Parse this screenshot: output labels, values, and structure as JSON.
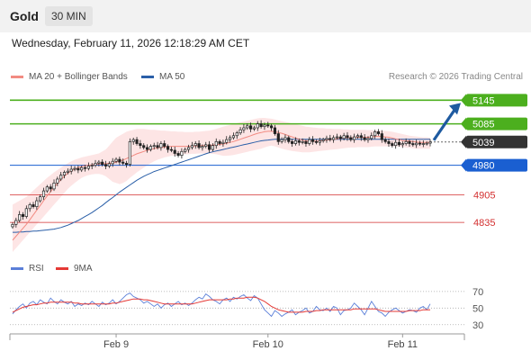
{
  "header": {
    "instrument": "Gold",
    "timeframe": "30 MIN"
  },
  "datetime": "Wednesday, February 11, 2026 12:18:29 AM CET",
  "legend": {
    "bollinger": "MA 20 + Bollinger Bands",
    "ma50": "MA 50",
    "rsi": "RSI",
    "rsi_ma": "9MA"
  },
  "credit": "Research © 2026 Trading Central",
  "colors": {
    "resistance": "#4caf1e",
    "current": "#333333",
    "pivot": "#1a5fd1",
    "support": "#d32f2f",
    "ma20": "#f28b82",
    "band": "#fde2e2",
    "ma50": "#2a5fa8",
    "rsi": "#5b7fd8",
    "rsi_ma": "#e53935",
    "arrow": "#1e5aa0"
  },
  "chart_data": [
    {
      "type": "candlestick",
      "instrument": "Gold",
      "x_labels": [
        "Feb 9",
        "Feb 10",
        "Feb 11"
      ],
      "ylim": [
        4760,
        5180
      ],
      "levels": [
        {
          "value": 5145,
          "label": "5145",
          "kind": "resistance"
        },
        {
          "value": 5085,
          "label": "5085",
          "kind": "resistance"
        },
        {
          "value": 5039,
          "label": "5039",
          "kind": "current"
        },
        {
          "value": 4980,
          "label": "4980",
          "kind": "pivot"
        },
        {
          "value": 4905,
          "label": "4905",
          "kind": "support"
        },
        {
          "value": 4835,
          "label": "4835",
          "kind": "support"
        }
      ],
      "close": [
        4830,
        4840,
        4855,
        4850,
        4870,
        4880,
        4875,
        4890,
        4900,
        4915,
        4925,
        4920,
        4935,
        4945,
        4955,
        4962,
        4965,
        4970,
        4972,
        4968,
        4974,
        4972,
        4978,
        4980,
        4985,
        4988,
        4982,
        4978,
        4984,
        4990,
        4995,
        4988,
        4985,
        4982,
        5040,
        5045,
        5035,
        5030,
        5025,
        5020,
        5028,
        5030,
        5025,
        5035,
        5028,
        5020,
        5018,
        5010,
        5005,
        5015,
        5020,
        5025,
        5030,
        5035,
        5025,
        5028,
        5032,
        5020,
        5030,
        5040,
        5035,
        5038,
        5045,
        5050,
        5055,
        5062,
        5070,
        5075,
        5080,
        5072,
        5075,
        5085,
        5078,
        5082,
        5080,
        5075,
        5060,
        5040,
        5045,
        5050,
        5040,
        5035,
        5042,
        5038,
        5040,
        5035,
        5045,
        5040,
        5038,
        5042,
        5045,
        5048,
        5045,
        5050,
        5052,
        5048,
        5055,
        5050,
        5045,
        5052,
        5055,
        5050,
        5045,
        5048,
        5055,
        5065,
        5060,
        5045,
        5040,
        5035,
        5030,
        5038,
        5032,
        5035,
        5040,
        5035,
        5032,
        5036,
        5034,
        5035,
        5036,
        5039
      ],
      "ma20": [
        4790,
        4800,
        4810,
        4820,
        4830,
        4842,
        4854,
        4866,
        4878,
        4890,
        4902,
        4913,
        4924,
        4934,
        4944,
        4952,
        4960,
        4966,
        4970,
        4974,
        4977,
        4979,
        4980,
        4981,
        4982,
        4983,
        4984,
        4984,
        4985,
        4986,
        4988,
        4990,
        4993,
        4997,
        5001,
        5005,
        5009,
        5012,
        5015,
        5018,
        5020,
        5022,
        5024,
        5025,
        5026,
        5027,
        5028,
        5028,
        5028,
        5028,
        5028,
        5028,
        5029,
        5029,
        5030,
        5030,
        5030,
        5031,
        5031,
        5032,
        5033,
        5034,
        5036,
        5038,
        5040,
        5043,
        5046,
        5049,
        5052,
        5055,
        5058,
        5061,
        5063,
        5065,
        5066,
        5066,
        5065,
        5063,
        5061,
        5058,
        5055,
        5052,
        5049,
        5046,
        5044,
        5042,
        5041,
        5041,
        5041,
        5042,
        5043,
        5044,
        5045,
        5046,
        5047,
        5048,
        5049,
        5050,
        5050,
        5050,
        5051,
        5051,
        5051,
        5051,
        5052,
        5053,
        5053,
        5053,
        5052,
        5051,
        5049,
        5047,
        5045,
        5043,
        5042,
        5041,
        5040,
        5039,
        5038,
        5038,
        5038,
        5038
      ],
      "bb_upper": [
        4880,
        4885,
        4890,
        4895,
        4900,
        4908,
        4916,
        4924,
        4932,
        4940,
        4948,
        4955,
        4962,
        4968,
        4974,
        4980,
        4985,
        4990,
        4994,
        4997,
        5000,
        5002,
        5004,
        5006,
        5008,
        5010,
        5015,
        5020,
        5030,
        5040,
        5050,
        5055,
        5060,
        5065,
        5068,
        5070,
        5072,
        5072,
        5072,
        5071,
        5070,
        5070,
        5069,
        5068,
        5068,
        5067,
        5066,
        5066,
        5065,
        5065,
        5064,
        5064,
        5064,
        5065,
        5065,
        5066,
        5067,
        5068,
        5070,
        5072,
        5075,
        5078,
        5080,
        5082,
        5085,
        5087,
        5089,
        5091,
        5093,
        5095,
        5097,
        5099,
        5100,
        5100,
        5099,
        5098,
        5096,
        5094,
        5092,
        5090,
        5088,
        5086,
        5084,
        5082,
        5080,
        5078,
        5077,
        5076,
        5075,
        5074,
        5074,
        5073,
        5073,
        5072,
        5072,
        5072,
        5071,
        5071,
        5070,
        5070,
        5070,
        5070,
        5070,
        5069,
        5069,
        5069,
        5068,
        5068,
        5067,
        5066,
        5065,
        5063,
        5061,
        5059,
        5057,
        5055,
        5054,
        5053,
        5052,
        5051,
        5051,
        5050
      ],
      "bb_lower": [
        4760,
        4770,
        4780,
        4790,
        4800,
        4810,
        4820,
        4830,
        4840,
        4850,
        4860,
        4870,
        4880,
        4890,
        4900,
        4910,
        4920,
        4928,
        4935,
        4942,
        4948,
        4952,
        4955,
        4957,
        4958,
        4958,
        4956,
        4952,
        4945,
        4938,
        4935,
        4932,
        4935,
        4940,
        4948,
        4955,
        4962,
        4968,
        4974,
        4980,
        4985,
        4990,
        4994,
        4997,
        5000,
        5002,
        5004,
        5005,
        5006,
        5007,
        5008,
        5008,
        5009,
        5009,
        5010,
        5010,
        5010,
        5010,
        5009,
        5008,
        5006,
        5004,
        5004,
        5005,
        5006,
        5008,
        5010,
        5012,
        5014,
        5016,
        5018,
        5020,
        5022,
        5025,
        5028,
        5030,
        5028,
        5025,
        5022,
        5020,
        5018,
        5016,
        5015,
        5014,
        5013,
        5013,
        5013,
        5014,
        5015,
        5016,
        5017,
        5018,
        5019,
        5020,
        5021,
        5022,
        5023,
        5024,
        5025,
        5025,
        5026,
        5026,
        5026,
        5026,
        5027,
        5028,
        5028,
        5028,
        5028,
        5028,
        5028,
        5028,
        5027,
        5026,
        5025,
        5024,
        5023,
        5022,
        5022,
        5022,
        5022,
        5022
      ],
      "ma50": [
        4810,
        4810,
        4811,
        4811,
        4812,
        4812,
        4813,
        4813,
        4814,
        4815,
        4816,
        4817,
        4818,
        4820,
        4822,
        4825,
        4828,
        4832,
        4836,
        4840,
        4845,
        4850,
        4855,
        4860,
        4866,
        4872,
        4878,
        4885,
        4892,
        4898,
        4905,
        4912,
        4918,
        4924,
        4930,
        4936,
        4942,
        4947,
        4952,
        4956,
        4960,
        4964,
        4967,
        4970,
        4973,
        4976,
        4979,
        4982,
        4985,
        4988,
        4991,
        4994,
        4997,
        5000,
        5003,
        5006,
        5009,
        5012,
        5014,
        5016,
        5018,
        5020,
        5022,
        5024,
        5026,
        5028,
        5030,
        5032,
        5034,
        5036,
        5038,
        5040,
        5042,
        5043,
        5044,
        5045,
        5046,
        5046,
        5046,
        5046,
        5046,
        5046,
        5046,
        5046,
        5046,
        5046,
        5046,
        5046,
        5046,
        5046,
        5046,
        5046,
        5046,
        5046,
        5046,
        5046,
        5046,
        5046,
        5046,
        5046,
        5046,
        5046,
        5046,
        5046,
        5046,
        5046,
        5046,
        5046,
        5046,
        5046,
        5046,
        5046,
        5046,
        5046,
        5046,
        5046,
        5046,
        5046,
        5046,
        5046,
        5046,
        5046
      ]
    },
    {
      "type": "line",
      "name": "RSI",
      "y_ticks": [
        70,
        50,
        30
      ],
      "ylim": [
        20,
        85
      ],
      "series": [
        {
          "name": "RSI",
          "values": [
            43,
            48,
            52,
            55,
            50,
            56,
            58,
            54,
            60,
            57,
            55,
            62,
            58,
            55,
            60,
            57,
            55,
            58,
            52,
            55,
            53,
            56,
            54,
            58,
            55,
            52,
            57,
            54,
            56,
            60,
            55,
            58,
            62,
            66,
            68,
            64,
            62,
            60,
            56,
            58,
            55,
            52,
            55,
            50,
            54,
            56,
            52,
            55,
            58,
            54,
            56,
            53,
            56,
            60,
            63,
            61,
            67,
            64,
            60,
            58,
            55,
            60,
            62,
            58,
            63,
            61,
            64,
            66,
            62,
            59,
            65,
            62,
            55,
            48,
            44,
            40,
            47,
            44,
            40,
            43,
            45,
            48,
            42,
            45,
            47,
            50,
            44,
            46,
            52,
            48,
            47,
            50,
            46,
            52,
            50,
            42,
            47,
            48,
            50,
            56,
            52,
            48,
            42,
            50,
            58,
            52,
            46,
            44,
            40,
            45,
            48,
            50,
            47,
            44,
            46,
            48,
            47,
            45,
            50,
            52,
            48,
            55
          ]
        },
        {
          "name": "9MA",
          "values": [
            45,
            47,
            49,
            51,
            52,
            53,
            54,
            54,
            55,
            56,
            56,
            57,
            57,
            57,
            57,
            57,
            57,
            57,
            56,
            56,
            55,
            55,
            55,
            55,
            55,
            55,
            55,
            55,
            55,
            56,
            56,
            57,
            58,
            59,
            60,
            61,
            61,
            61,
            60,
            60,
            59,
            58,
            57,
            56,
            55,
            55,
            55,
            55,
            55,
            55,
            55,
            55,
            55,
            56,
            57,
            58,
            59,
            60,
            60,
            60,
            60,
            60,
            60,
            61,
            61,
            62,
            62,
            62,
            63,
            63,
            63,
            62,
            60,
            58,
            55,
            52,
            50,
            48,
            47,
            46,
            45,
            45,
            45,
            45,
            45,
            46,
            46,
            46,
            47,
            47,
            48,
            48,
            48,
            48,
            48,
            48,
            48,
            48,
            48,
            49,
            49,
            49,
            49,
            49,
            49,
            49,
            48,
            47,
            46,
            46,
            46,
            46,
            46,
            46,
            46,
            47,
            47,
            47,
            47,
            48,
            48,
            48
          ]
        }
      ]
    }
  ]
}
